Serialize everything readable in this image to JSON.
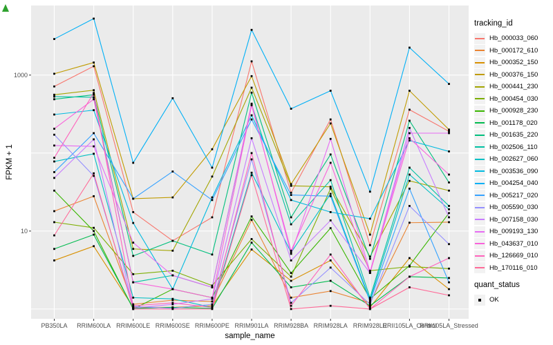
{
  "chart_data": {
    "type": "line",
    "xlabel": "sample_name",
    "ylabel": "FPKM + 1",
    "y_scale": "log10",
    "ylim": [
      0.75,
      7800
    ],
    "y_ticks": [
      {
        "value": 1000,
        "label": "1000"
      },
      {
        "value": 10,
        "label": "10"
      }
    ],
    "y_gridline_values": [
      1,
      10,
      100,
      1000
    ],
    "grid": "on",
    "panel_bg": "#EBEBEB",
    "grid_color": "#FFFFFF",
    "tick_color": "#333333",
    "tick_label_color": "#4D4D4D",
    "point_color": "#000000",
    "legend": {
      "title": "tracking_id",
      "position": "right"
    },
    "legend2": {
      "title": "quant_status",
      "entries": [
        {
          "label": "OK",
          "marker": "black-square"
        }
      ]
    },
    "categories": [
      "PB350LA",
      "RRIM600LA",
      "RRIM600LE",
      "RRIM600SE",
      "RRIM600PE",
      "RRIM901LA",
      "RRIM928BA",
      "RRIM928LA",
      "RRIM928LE",
      "RRII105LA_Control",
      "RRII105LA_Stressed"
    ],
    "series": [
      {
        "name": "Hb_000033_060",
        "color": "#F8766D",
        "values": [
          715,
          1300,
          17.5,
          7.5,
          15,
          1500,
          31,
          270,
          6.6,
          360,
          190
        ]
      },
      {
        "name": "Hb_000172_610",
        "color": "#EA8331",
        "values": [
          18,
          28,
          1.15,
          1.3,
          1.25,
          13.9,
          1.4,
          1.7,
          1.2,
          12.8,
          13
        ]
      },
      {
        "name": "Hb_000352_150",
        "color": "#D89000",
        "values": [
          4.2,
          6.4,
          1.05,
          1.05,
          1.1,
          5.8,
          2.3,
          4.2,
          1.05,
          4.5,
          1.8
        ]
      },
      {
        "name": "Hb_000376_150",
        "color": "#C09B00",
        "values": [
          1040,
          1450,
          26,
          27,
          112,
          970,
          40,
          240,
          9,
          630,
          200
        ]
      },
      {
        "name": "Hb_000441_230",
        "color": "#A3A500",
        "values": [
          560,
          640,
          5.9,
          5.6,
          50,
          690,
          38,
          37,
          4.7,
          44,
          33
        ]
      },
      {
        "name": "Hb_000454_030",
        "color": "#7CAE00",
        "values": [
          13,
          11,
          2.8,
          3.1,
          2.0,
          7.9,
          2.6,
          35,
          3.1,
          3.5,
          3.3
        ]
      },
      {
        "name": "Hb_000928_230",
        "color": "#39B600",
        "values": [
          33,
          10,
          1.0,
          1.8,
          1.4,
          15.4,
          2.9,
          10.9,
          1.35,
          3.6,
          17
        ]
      },
      {
        "name": "Hb_001178_020",
        "color": "#00BB4E",
        "values": [
          5.9,
          9,
          1.02,
          1.05,
          1.02,
          7.1,
          1.9,
          2.3,
          1.1,
          2.6,
          2.5
        ]
      },
      {
        "name": "Hb_001635_220",
        "color": "#00BF7D",
        "values": [
          490,
          560,
          4.8,
          7.5,
          5.0,
          595,
          15,
          96,
          4.4,
          260,
          42
        ]
      },
      {
        "name": "Hb_002506_110",
        "color": "#00C1A3",
        "values": [
          530,
          520,
          2.2,
          2.7,
          1.9,
          420,
          12.2,
          45,
          1.4,
          65,
          21
        ]
      },
      {
        "name": "Hb_002627_060",
        "color": "#00BFC4",
        "values": [
          78,
          98,
          1.4,
          1.35,
          1.05,
          56,
          5.3,
          30,
          1.3,
          53,
          19
        ]
      },
      {
        "name": "Hb_003536_090",
        "color": "#00BAE0",
        "values": [
          312,
          355,
          12.7,
          1.8,
          27,
          305,
          25,
          17.5,
          14.4,
          145,
          105
        ]
      },
      {
        "name": "Hb_004254_040",
        "color": "#00B0F6",
        "values": [
          2900,
          5300,
          75,
          505,
          65,
          3800,
          370,
          630,
          32,
          2250,
          770
        ]
      },
      {
        "name": "Hb_005217_020",
        "color": "#35A2FF",
        "values": [
          57,
          180,
          26,
          58,
          25,
          270,
          29,
          28,
          1.25,
          35,
          2.2
        ]
      },
      {
        "name": "Hb_005590_030",
        "color": "#9590FF",
        "values": [
          172,
          51,
          1.08,
          1.02,
          1.15,
          83,
          1.2,
          3.4,
          1.15,
          21,
          6.8
        ]
      },
      {
        "name": "Hb_007158_030",
        "color": "#C77CFF",
        "values": [
          48,
          150,
          1.03,
          1.15,
          1.35,
          155,
          4.2,
          13.7,
          2.9,
          210,
          15
        ]
      },
      {
        "name": "Hb_009193_130",
        "color": "#E76BF3",
        "values": [
          125,
          122,
          7.1,
          2.7,
          1.9,
          430,
          5.1,
          152,
          3.0,
          180,
          180
        ]
      },
      {
        "name": "Hb_043637_010",
        "color": "#FA62DB",
        "values": [
          205,
          490,
          2.2,
          1.8,
          1.4,
          410,
          5.6,
          75,
          2.9,
          155,
          53
        ]
      },
      {
        "name": "Hb_126669_010",
        "color": "#FF62BC",
        "values": [
          87,
          590,
          1.1,
          1.2,
          1.05,
          100,
          1.1,
          5.0,
          1.0,
          2.6,
          4.5
        ]
      },
      {
        "name": "Hb_170116_010",
        "color": "#FF6A98",
        "values": [
          8.8,
          55,
          1.0,
          1.0,
          1.0,
          52,
          1.0,
          1.1,
          1.0,
          1.9,
          1.5
        ]
      }
    ]
  }
}
